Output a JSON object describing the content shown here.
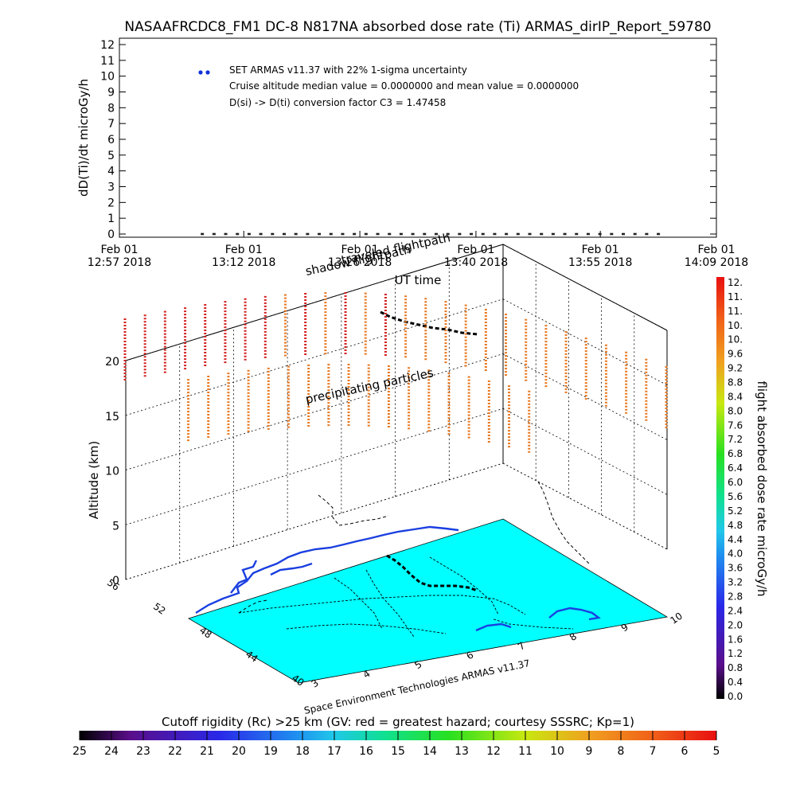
{
  "title": "NASAAFRCDC8_FM1 DC-8   N817NA absorbed dose rate (Ti) ARMAS_dirIP_Report_59780",
  "chart_data": [
    {
      "type": "scatter",
      "ylabel": "dD(Ti)/dt microGy/h",
      "xlabel": "UT time",
      "ylim": [
        0,
        12
      ],
      "yticks": [
        "0",
        "1",
        "2",
        "3",
        "4",
        "5",
        "6",
        "7",
        "8",
        "9",
        "10",
        "11",
        "12"
      ],
      "xticks": [
        {
          "date": "Feb 01",
          "time": "12:57 2018"
        },
        {
          "date": "Feb 01",
          "time": "13:12 2018"
        },
        {
          "date": "Feb 01",
          "time": "13:26 2018"
        },
        {
          "date": "Feb 01",
          "time": "13:40 2018"
        },
        {
          "date": "Feb 01",
          "time": "13:55 2018"
        },
        {
          "date": "Feb 01",
          "time": "14:09 2018"
        }
      ],
      "xlim": [
        "12:57",
        "14:09"
      ],
      "series_color": "#1032d8",
      "series": [
        {
          "x_start": "13:07",
          "x_end": "14:02",
          "values": [
            0,
            0,
            0,
            0,
            0,
            0,
            0,
            0,
            0,
            0,
            0,
            0,
            0,
            0,
            0,
            0,
            0,
            0,
            0,
            0,
            0,
            0,
            0,
            0,
            0,
            0,
            0,
            0,
            0,
            0,
            0,
            0,
            0,
            0,
            0,
            0,
            0,
            0,
            0,
            0
          ]
        }
      ],
      "annotations": [
        "SET ARMAS v11.37 with 22% 1-sigma uncertainty",
        "Cruise altitude median value = 0.0000000 and mean value = 0.0000000",
        "D(si) -> D(ti) conversion factor C3 = 1.47458"
      ]
    },
    {
      "type": "3d-map",
      "zlabel": "Altitude (km)",
      "zticks": [
        "0",
        "5",
        "10",
        "15",
        "20"
      ],
      "lat_ticks": [
        "56",
        "52",
        "48",
        "44",
        "40"
      ],
      "lon_ticks": [
        "3",
        "4",
        "5",
        "6",
        "7",
        "8",
        "9",
        "10"
      ],
      "map_color": "#00ffff",
      "coast_color": "#1a3fe0",
      "annotations": [
        "shadow flightpath",
        "traveled flightpath",
        "precipitating particles"
      ],
      "credit": "Space Environment Technologies ARMAS v11.37"
    }
  ],
  "colorbar_right": {
    "label": "flight absorbed dose rate microGy/h",
    "ticks": [
      "12.",
      "11.",
      "11.",
      "10.",
      "10.",
      "9.6",
      "9.2",
      "8.8",
      "8.4",
      "8.0",
      "7.6",
      "7.2",
      "6.8",
      "6.4",
      "6.0",
      "5.6",
      "5.2",
      "4.8",
      "4.4",
      "4.0",
      "3.6",
      "3.2",
      "2.8",
      "2.4",
      "2.0",
      "1.6",
      "1.2",
      "0.8",
      "0.4",
      "0.0"
    ]
  },
  "colorbar_bottom": {
    "label": "Cutoff rigidity (Rc) >25 km (GV: red = greatest hazard; courtesy SSSRC; Kp=1)",
    "ticks": [
      "25",
      "24",
      "23",
      "22",
      "21",
      "20",
      "19",
      "18",
      "17",
      "16",
      "15",
      "14",
      "13",
      "12",
      "11",
      "10",
      "9",
      "8",
      "7",
      "6",
      "5"
    ]
  },
  "colors": {
    "hazard_red": "#d42020",
    "hazard_orange": "#e87820"
  }
}
